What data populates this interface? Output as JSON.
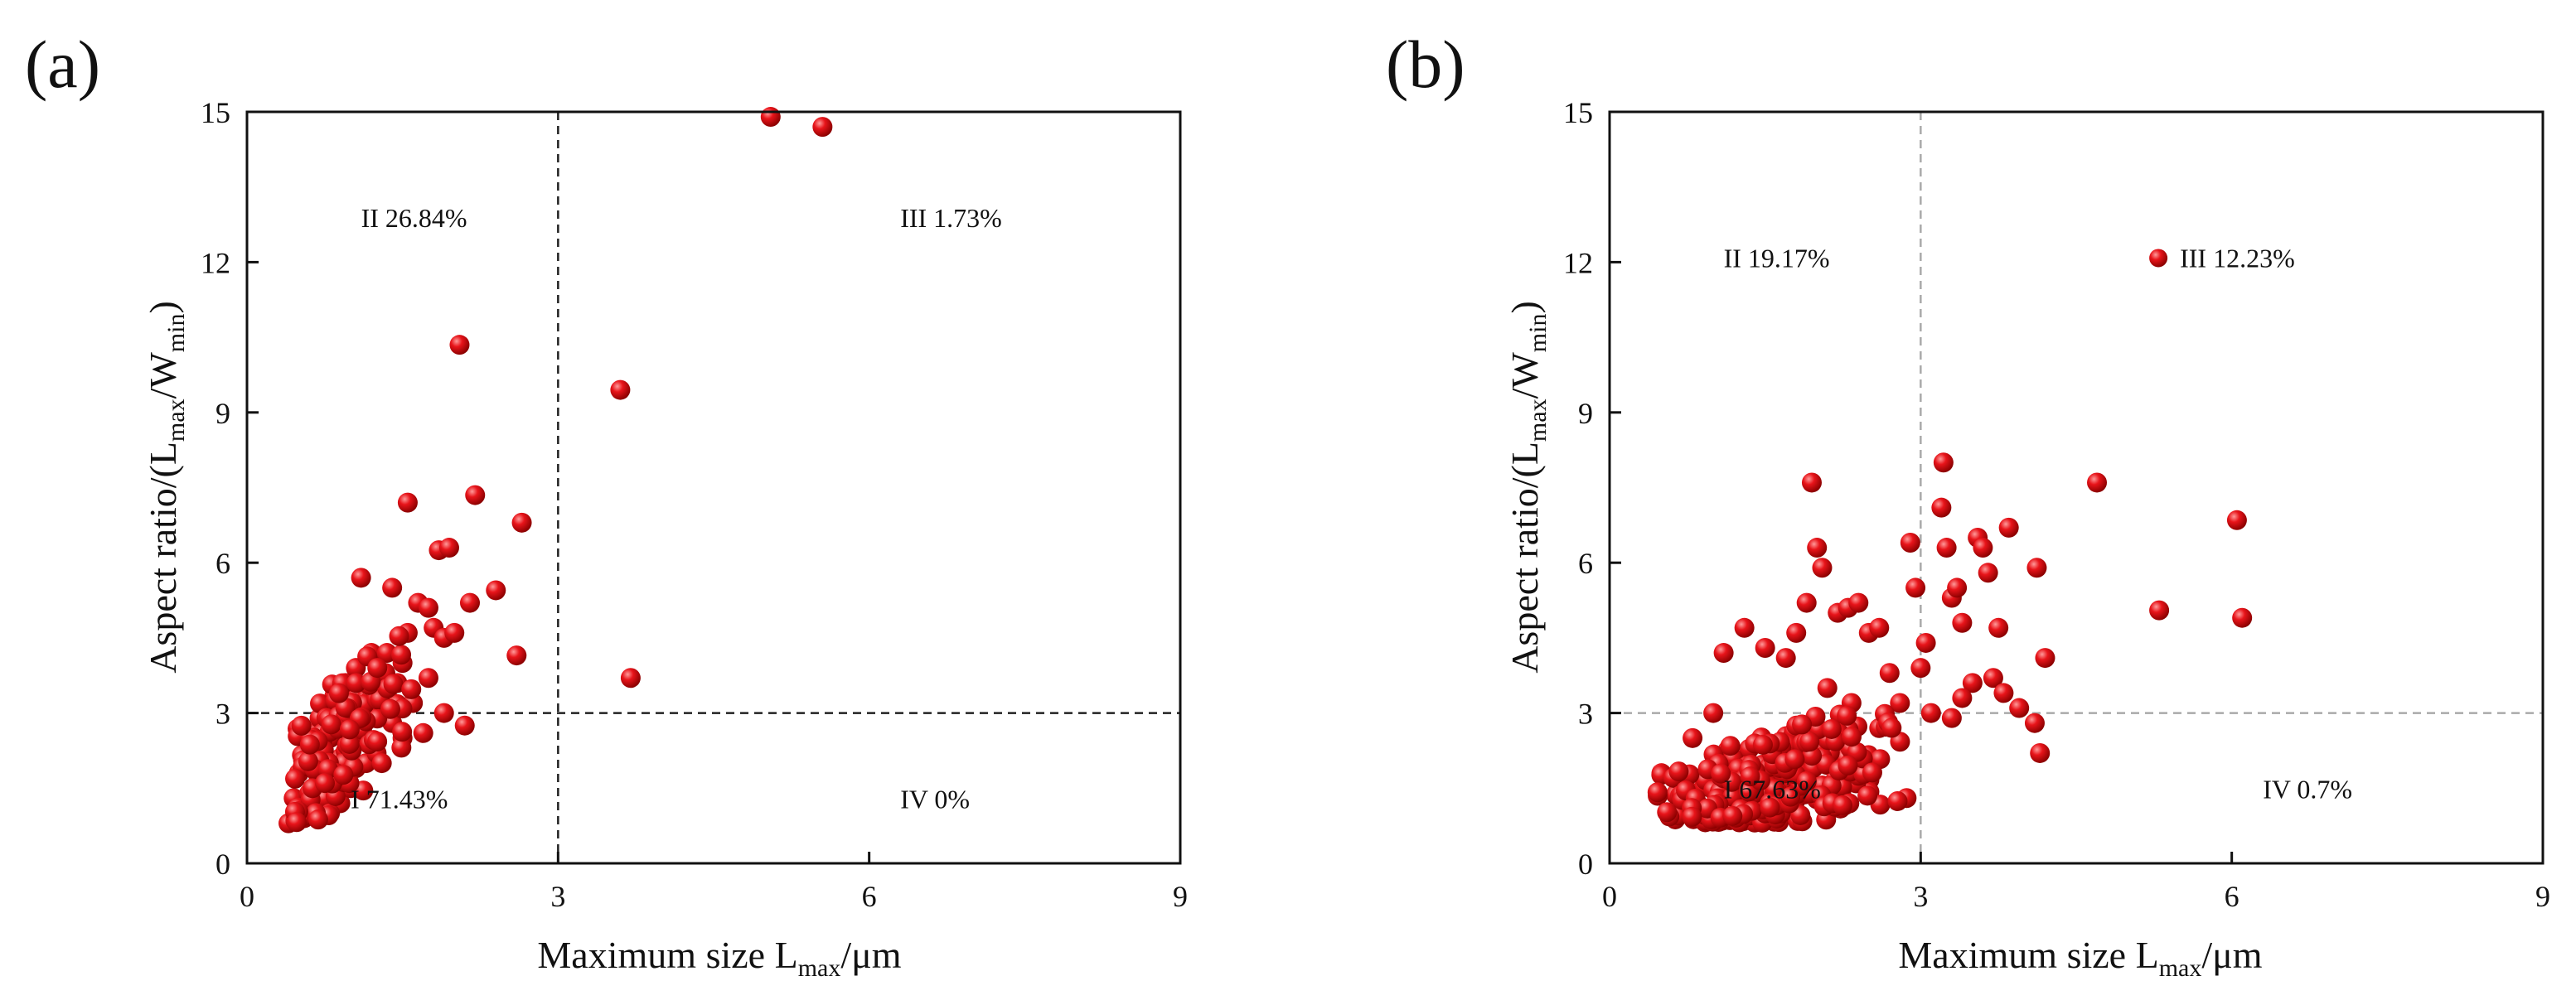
{
  "colors": {
    "point": "#e8141a",
    "point_highlight": "#ff9a9a",
    "point_edge": "#8a0000",
    "axis": "#111111"
  },
  "chart_data": [
    {
      "type": "scatter",
      "panel_label": "(a)",
      "xlabel_main": "Maximum size L",
      "xlabel_sub": "max",
      "xlabel_tail": "/μm",
      "ylabel_main": "Aspect ratio/(L",
      "ylabel_sub1": "max",
      "ylabel_mid": "/W",
      "ylabel_sub2": "min",
      "ylabel_tail": ")",
      "xlim": [
        0,
        9
      ],
      "ylim": [
        0,
        15
      ],
      "xticks": [
        0,
        3,
        6,
        9
      ],
      "yticks": [
        0,
        3,
        6,
        9,
        12,
        15
      ],
      "xtick_labels": [
        "0",
        "3",
        "6",
        "9"
      ],
      "ytick_labels": [
        "0",
        "3",
        "6",
        "9",
        "12",
        "15"
      ],
      "divider_x": 3,
      "divider_y": 3,
      "divider_style": "dark",
      "quadrants": [
        {
          "label": "I 71.43%",
          "x": 1.0,
          "y": 1.1
        },
        {
          "label": "II 26.84%",
          "x": 1.1,
          "y": 12.7
        },
        {
          "label": "III 1.73%",
          "x": 6.3,
          "y": 12.7
        },
        {
          "label": "IV 0%",
          "x": 6.3,
          "y": 1.1
        }
      ],
      "points": [
        [
          0.4,
          0.8
        ],
        [
          0.45,
          1.3
        ],
        [
          0.5,
          1.0
        ],
        [
          0.55,
          0.9
        ],
        [
          0.5,
          1.8
        ],
        [
          0.6,
          1.4
        ],
        [
          0.6,
          2.0
        ],
        [
          0.65,
          1.1
        ],
        [
          0.65,
          2.6
        ],
        [
          0.7,
          1.6
        ],
        [
          0.7,
          2.2
        ],
        [
          0.75,
          1.3
        ],
        [
          0.75,
          3.0
        ],
        [
          0.8,
          1.9
        ],
        [
          0.8,
          2.5
        ],
        [
          0.85,
          1.5
        ],
        [
          0.85,
          3.3
        ],
        [
          0.9,
          2.1
        ],
        [
          0.9,
          2.8
        ],
        [
          0.95,
          1.7
        ],
        [
          0.95,
          3.6
        ],
        [
          1.0,
          2.3
        ],
        [
          1.0,
          3.1
        ],
        [
          1.05,
          1.9
        ],
        [
          1.05,
          3.9
        ],
        [
          1.1,
          2.6
        ],
        [
          1.1,
          5.7
        ],
        [
          1.15,
          2.0
        ],
        [
          1.15,
          3.4
        ],
        [
          1.2,
          2.9
        ],
        [
          1.2,
          4.2
        ],
        [
          1.25,
          2.2
        ],
        [
          1.25,
          3.7
        ],
        [
          1.3,
          3.1
        ],
        [
          1.3,
          2.0
        ],
        [
          1.35,
          4.2
        ],
        [
          1.4,
          2.8
        ],
        [
          1.4,
          5.5
        ],
        [
          1.45,
          3.6
        ],
        [
          1.5,
          4.0
        ],
        [
          1.5,
          2.5
        ],
        [
          1.55,
          7.2
        ],
        [
          1.55,
          4.6
        ],
        [
          1.6,
          3.2
        ],
        [
          1.65,
          5.2
        ],
        [
          1.7,
          2.6
        ],
        [
          1.75,
          3.7
        ],
        [
          1.75,
          5.1
        ],
        [
          1.8,
          4.7
        ],
        [
          1.85,
          6.25
        ],
        [
          1.9,
          4.5
        ],
        [
          1.9,
          3.0
        ],
        [
          1.95,
          6.3
        ],
        [
          2.0,
          4.6
        ],
        [
          2.05,
          10.35
        ],
        [
          2.1,
          2.75
        ],
        [
          2.15,
          5.2
        ],
        [
          2.2,
          7.35
        ],
        [
          2.4,
          5.45
        ],
        [
          2.6,
          4.15
        ],
        [
          2.65,
          6.8
        ],
        [
          3.6,
          9.45
        ],
        [
          3.7,
          3.7
        ],
        [
          5.05,
          14.9
        ],
        [
          5.55,
          14.7
        ],
        [
          0.9,
          1.2
        ],
        [
          1.0,
          1.5
        ],
        [
          0.6,
          2.4
        ],
        [
          0.8,
          1.0
        ],
        [
          1.1,
          3.5
        ],
        [
          0.7,
          2.9
        ]
      ],
      "cluster": {
        "x_center": 0.9,
        "x_spread": 0.45,
        "slope": 2.5,
        "y_spread": 0.9,
        "count": 110
      }
    },
    {
      "type": "scatter",
      "panel_label": "(b)",
      "xlabel_main": "Maximum size L",
      "xlabel_sub": "max",
      "xlabel_tail": "/μm",
      "ylabel_main": "Aspect ratio/(L",
      "ylabel_sub1": "max",
      "ylabel_mid": "/W",
      "ylabel_sub2": "min",
      "ylabel_tail": ")",
      "xlim": [
        0,
        9
      ],
      "ylim": [
        0,
        15
      ],
      "xticks": [
        0,
        3,
        6,
        9
      ],
      "yticks": [
        0,
        3,
        6,
        9,
        12,
        15
      ],
      "xtick_labels": [
        "0",
        "3",
        "6",
        "9"
      ],
      "ytick_labels": [
        "0",
        "3",
        "6",
        "9",
        "12",
        "15"
      ],
      "divider_x": 3,
      "divider_y": 3,
      "divider_style": "light",
      "quadrants": [
        {
          "label": "I 67.63%",
          "x": 1.1,
          "y": 1.3
        },
        {
          "label": "II 19.17%",
          "x": 1.1,
          "y": 11.9
        },
        {
          "label": "III 12.23%",
          "x": 5.5,
          "y": 11.9,
          "marker": true
        },
        {
          "label": "IV 0.7%",
          "x": 6.3,
          "y": 1.3
        }
      ],
      "points": [
        [
          0.5,
          1.8
        ],
        [
          0.6,
          1.0
        ],
        [
          0.7,
          1.3
        ],
        [
          0.8,
          2.5
        ],
        [
          1.0,
          3.0
        ],
        [
          1.1,
          4.2
        ],
        [
          1.3,
          4.7
        ],
        [
          1.5,
          4.3
        ],
        [
          1.7,
          4.1
        ],
        [
          1.8,
          4.6
        ],
        [
          1.9,
          5.2
        ],
        [
          1.95,
          7.6
        ],
        [
          2.0,
          6.3
        ],
        [
          2.05,
          5.9
        ],
        [
          2.1,
          3.5
        ],
        [
          2.2,
          5.0
        ],
        [
          2.3,
          5.1
        ],
        [
          2.4,
          5.2
        ],
        [
          2.5,
          4.6
        ],
        [
          2.6,
          4.7
        ],
        [
          2.7,
          3.8
        ],
        [
          2.9,
          6.4
        ],
        [
          2.95,
          5.5
        ],
        [
          3.0,
          3.9
        ],
        [
          3.05,
          4.4
        ],
        [
          3.2,
          7.1
        ],
        [
          3.22,
          8.0
        ],
        [
          3.25,
          6.3
        ],
        [
          3.3,
          5.3
        ],
        [
          3.35,
          5.5
        ],
        [
          3.4,
          4.8
        ],
        [
          3.5,
          3.6
        ],
        [
          3.55,
          6.5
        ],
        [
          3.6,
          6.3
        ],
        [
          3.65,
          5.8
        ],
        [
          3.7,
          3.7
        ],
        [
          3.75,
          4.7
        ],
        [
          3.85,
          6.7
        ],
        [
          3.95,
          3.1
        ],
        [
          4.1,
          2.8
        ],
        [
          4.12,
          5.9
        ],
        [
          4.15,
          2.2
        ],
        [
          4.2,
          4.1
        ],
        [
          4.7,
          7.6
        ],
        [
          5.3,
          5.05
        ],
        [
          6.05,
          6.85
        ],
        [
          6.1,
          4.9
        ],
        [
          2.8,
          3.2
        ],
        [
          3.1,
          3.0
        ],
        [
          3.4,
          3.3
        ],
        [
          2.6,
          2.7
        ],
        [
          3.8,
          3.4
        ],
        [
          2.2,
          2.5
        ],
        [
          3.3,
          2.9
        ]
      ],
      "cluster": {
        "x_center": 1.55,
        "x_spread": 0.75,
        "slope": 0.75,
        "y_spread": 0.85,
        "count": 330
      }
    }
  ]
}
